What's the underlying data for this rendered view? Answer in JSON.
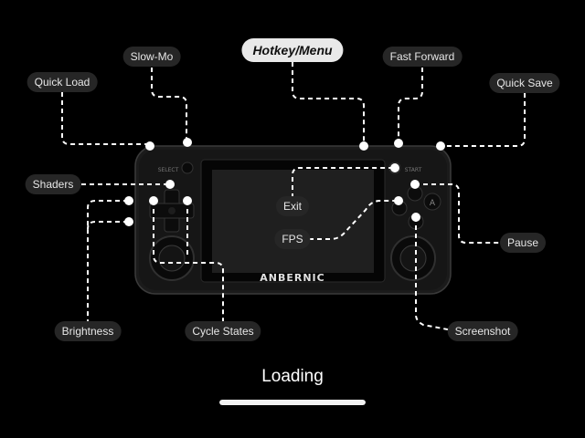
{
  "hotkeys": {
    "hotkey_menu": "Hotkey/Menu",
    "quick_load": "Quick Load",
    "slow_mo": "Slow-Mo",
    "fast_forward": "Fast Forward",
    "quick_save": "Quick Save",
    "shaders": "Shaders",
    "exit": "Exit",
    "fps": "FPS",
    "pause": "Pause",
    "brightness": "Brightness",
    "cycle_states": "Cycle States",
    "screenshot": "Screenshot"
  },
  "device": {
    "brand": "ANBERNIC",
    "select_label": "SELECT",
    "start_label": "START",
    "a_button": "A",
    "icon": "handheld-console-icon"
  },
  "loading": {
    "text": "Loading",
    "progress": 1.0
  },
  "colors": {
    "background": "#000000",
    "label_bg": "#262626",
    "label_text": "#e6e6e6",
    "highlight_bg": "#e9e9e9",
    "connector": "#ffffff"
  }
}
